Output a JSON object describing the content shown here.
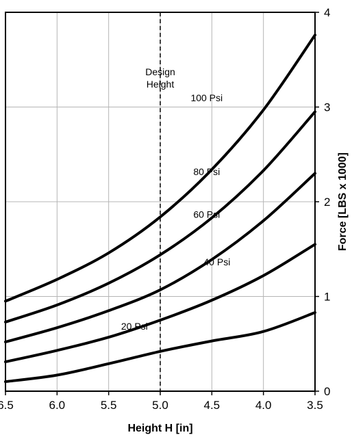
{
  "chart_data": {
    "type": "line",
    "title": "",
    "xlabel": "Height H [in]",
    "ylabel": "Force [LBS x 1000]",
    "xlim": [
      6.5,
      3.5
    ],
    "ylim": [
      0,
      4
    ],
    "x_reversed": true,
    "x_ticks": [
      "6.5",
      "6.0",
      "5.5",
      "5.0",
      "4.5",
      "4.0",
      "3.5"
    ],
    "y_ticks": [
      "0",
      "1",
      "2",
      "3",
      "4"
    ],
    "y_axis_side": "right",
    "grid": true,
    "annotation": {
      "line1": "Design",
      "line2": "Height",
      "x": 5.0
    },
    "series": [
      {
        "name": "20 Psi",
        "label": "20 Psi",
        "x": [
          6.5,
          6.0,
          5.5,
          5.0,
          4.5,
          4.0,
          3.5
        ],
        "values": [
          0.1,
          0.17,
          0.29,
          0.42,
          0.53,
          0.63,
          0.83
        ]
      },
      {
        "name": "40 Psi",
        "label": "40 Psi",
        "x": [
          6.5,
          6.0,
          5.5,
          5.0,
          4.5,
          4.0,
          3.5
        ],
        "values": [
          0.31,
          0.43,
          0.57,
          0.75,
          0.96,
          1.22,
          1.55
        ]
      },
      {
        "name": "60 Psi",
        "label": "60 Psi",
        "x": [
          6.5,
          6.0,
          5.5,
          5.0,
          4.5,
          4.0,
          3.5
        ],
        "values": [
          0.52,
          0.67,
          0.85,
          1.07,
          1.39,
          1.8,
          2.3
        ]
      },
      {
        "name": "80 Psi",
        "label": "80 Psi",
        "x": [
          6.5,
          6.0,
          5.5,
          5.0,
          4.5,
          4.0,
          3.5
        ],
        "values": [
          0.73,
          0.91,
          1.14,
          1.44,
          1.83,
          2.33,
          2.95
        ]
      },
      {
        "name": "100 Psi",
        "label": "100 Psi",
        "x": [
          6.5,
          6.0,
          5.5,
          5.0,
          4.5,
          4.0,
          3.5
        ],
        "values": [
          0.95,
          1.18,
          1.46,
          1.84,
          2.34,
          2.97,
          3.76
        ]
      }
    ]
  }
}
